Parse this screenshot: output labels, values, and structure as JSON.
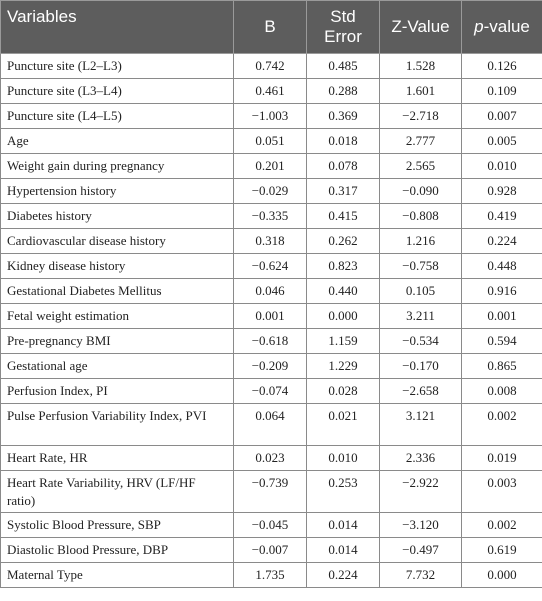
{
  "headers": {
    "variables": "Variables",
    "b": "B",
    "std_error": "Std Error",
    "z_value": "Z-Value",
    "p_value_italic": "p",
    "p_value_rest": "-value"
  },
  "rows": [
    {
      "variable": "Puncture site (L2–L3)",
      "b": "0.742",
      "se": "0.485",
      "z": "1.528",
      "p": "0.126"
    },
    {
      "variable": "Puncture site (L3–L4)",
      "b": "0.461",
      "se": "0.288",
      "z": "1.601",
      "p": "0.109"
    },
    {
      "variable": "Puncture site (L4–L5)",
      "b": "−1.003",
      "se": "0.369",
      "z": "−2.718",
      "p": "0.007"
    },
    {
      "variable": "Age",
      "b": "0.051",
      "se": "0.018",
      "z": "2.777",
      "p": "0.005"
    },
    {
      "variable": "Weight gain during pregnancy",
      "b": "0.201",
      "se": "0.078",
      "z": "2.565",
      "p": "0.010"
    },
    {
      "variable": "Hypertension history",
      "b": "−0.029",
      "se": "0.317",
      "z": "−0.090",
      "p": "0.928"
    },
    {
      "variable": "Diabetes history",
      "b": "−0.335",
      "se": "0.415",
      "z": "−0.808",
      "p": "0.419"
    },
    {
      "variable": "Cardiovascular disease history",
      "b": "0.318",
      "se": "0.262",
      "z": "1.216",
      "p": "0.224"
    },
    {
      "variable": "Kidney disease history",
      "b": "−0.624",
      "se": "0.823",
      "z": "−0.758",
      "p": "0.448"
    },
    {
      "variable": "Gestational Diabetes Mellitus",
      "b": "0.046",
      "se": "0.440",
      "z": "0.105",
      "p": "0.916"
    },
    {
      "variable": "Fetal weight estimation",
      "b": "0.001",
      "se": "0.000",
      "z": "3.211",
      "p": "0.001"
    },
    {
      "variable": "Pre-pregnancy BMI",
      "b": "−0.618",
      "se": "1.159",
      "z": "−0.534",
      "p": "0.594"
    },
    {
      "variable": "Gestational age",
      "b": "−0.209",
      "se": "1.229",
      "z": "−0.170",
      "p": "0.865"
    },
    {
      "variable": "Perfusion Index, PI",
      "b": "−0.074",
      "se": "0.028",
      "z": "−2.658",
      "p": "0.008"
    },
    {
      "variable": "Pulse Perfusion Variability Index, PVI",
      "b": "0.064",
      "se": "0.021",
      "z": "3.121",
      "p": "0.002"
    },
    {
      "variable": "Heart Rate, HR",
      "b": "0.023",
      "se": "0.010",
      "z": "2.336",
      "p": "0.019"
    },
    {
      "variable": "Heart Rate Variability, HRV (LF/HF ratio)",
      "b": "−0.739",
      "se": "0.253",
      "z": "−2.922",
      "p": "0.003"
    },
    {
      "variable": "Systolic Blood Pressure, SBP",
      "b": "−0.045",
      "se": "0.014",
      "z": "−3.120",
      "p": "0.002"
    },
    {
      "variable": "Diastolic Blood Pressure, DBP",
      "b": "−0.007",
      "se": "0.014",
      "z": "−0.497",
      "p": "0.619"
    },
    {
      "variable": "Maternal Type",
      "b": "1.735",
      "se": "0.224",
      "z": "7.732",
      "p": "0.000"
    }
  ]
}
